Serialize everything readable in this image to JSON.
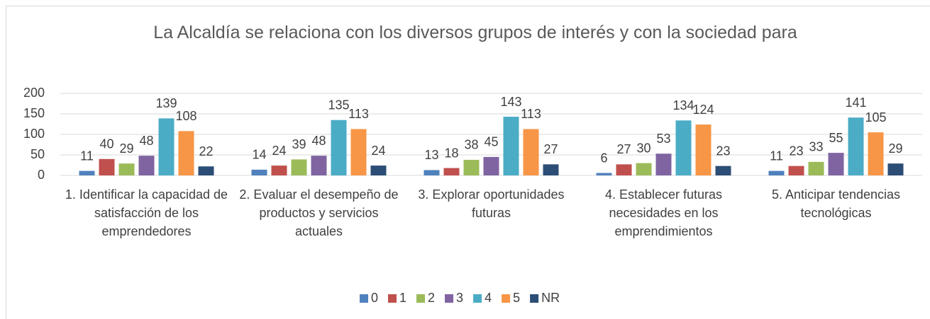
{
  "chart_data": {
    "type": "bar",
    "title": "La Alcaldía se relaciona con los diversos grupos de interés y con la sociedad para",
    "categories": [
      "1. Identificar la capacidad de satisfacción de los emprendedores",
      "2. Evaluar el desempeño de productos y servicios actuales",
      "3. Explorar oportunidades futuras",
      "4. Establecer futuras necesidades en los emprendimientos",
      "5. Anticipar tendencias tecnológicas"
    ],
    "series": [
      {
        "name": "0",
        "color": "#4f81bd",
        "values": [
          11,
          14,
          13,
          6,
          11
        ]
      },
      {
        "name": "1",
        "color": "#c0504d",
        "values": [
          40,
          24,
          18,
          27,
          23
        ]
      },
      {
        "name": "2",
        "color": "#9bbb59",
        "values": [
          29,
          39,
          38,
          30,
          33
        ]
      },
      {
        "name": "3",
        "color": "#8064a2",
        "values": [
          48,
          48,
          45,
          53,
          55
        ]
      },
      {
        "name": "4",
        "color": "#4bacc6",
        "values": [
          139,
          135,
          143,
          134,
          141
        ]
      },
      {
        "name": "5",
        "color": "#f79646",
        "values": [
          108,
          113,
          113,
          124,
          105
        ]
      },
      {
        "name": "NR",
        "color": "#2c4d75",
        "values": [
          22,
          24,
          27,
          23,
          29
        ]
      }
    ],
    "ylim": [
      0,
      200
    ],
    "yticks": [
      0,
      50,
      100,
      150,
      200
    ],
    "grid": true,
    "legend": "bottom"
  }
}
